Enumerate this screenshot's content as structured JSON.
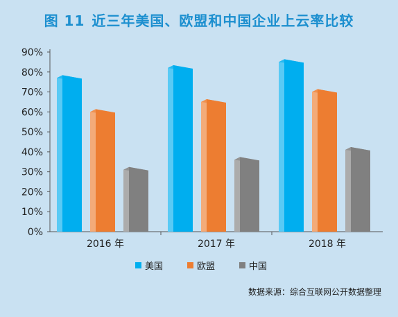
{
  "title": {
    "figure": "图 11",
    "text": "近三年美国、欧盟和中国企业上云率比较"
  },
  "source": "数据来源：综合互联网公开数据整理",
  "colors": {
    "background": "#c9e1f2",
    "title": "#1c8fcf",
    "美国": "#00aeef",
    "欧盟": "#ed7d31",
    "中国": "#808080"
  },
  "chart_data": {
    "type": "bar",
    "categories": [
      "2016 年",
      "2017 年",
      "2018 年"
    ],
    "series": [
      {
        "name": "美国",
        "values": [
          77,
          82,
          85
        ]
      },
      {
        "name": "欧盟",
        "values": [
          60,
          65,
          70
        ]
      },
      {
        "name": "中国",
        "values": [
          31,
          36,
          41
        ]
      }
    ],
    "y_ticks": [
      "0%",
      "10%",
      "20%",
      "30%",
      "40%",
      "50%",
      "60%",
      "70%",
      "80%",
      "90%"
    ],
    "ylim": [
      0,
      90
    ],
    "grid": false,
    "legend_position": "bottom-center",
    "style": "3d-bars"
  }
}
